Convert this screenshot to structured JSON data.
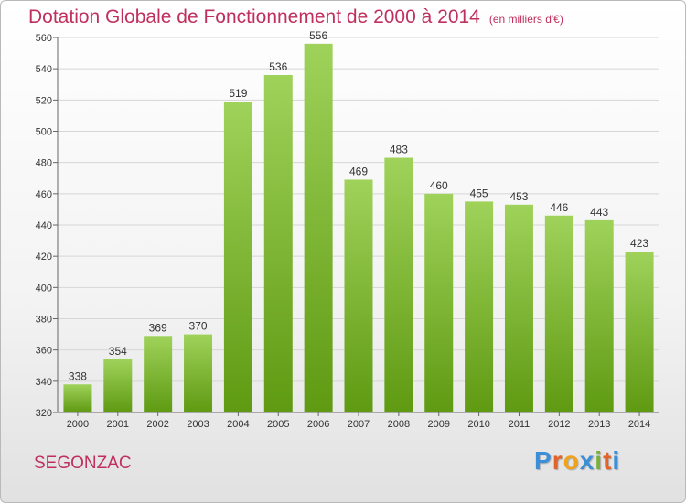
{
  "header": {
    "title": "Dotation Globale de Fonctionnement de 2000 à 2014",
    "unit": "(en milliers d'€)"
  },
  "commune": "SEGONZAC",
  "logo": {
    "letters": [
      "P",
      "r",
      "o",
      "x",
      "i",
      "t",
      "i"
    ],
    "colors": [
      "#3a8fd8",
      "#e2632a",
      "#f0a21c",
      "#3a8fd8",
      "#7ab03a",
      "#e2632a",
      "#3a8fd8"
    ]
  },
  "colors": {
    "bar_light": "#9fd25a",
    "bar_dark": "#5f9a12",
    "title": "#c0305e",
    "grid": "#d6d6d6",
    "axis": "#666666"
  },
  "chart_data": {
    "type": "bar",
    "categories": [
      "2000",
      "2001",
      "2002",
      "2003",
      "2004",
      "2005",
      "2006",
      "2007",
      "2008",
      "2009",
      "2010",
      "2011",
      "2012",
      "2013",
      "2014"
    ],
    "values": [
      338,
      354,
      369,
      370,
      519,
      536,
      556,
      469,
      483,
      460,
      455,
      453,
      446,
      443,
      423
    ],
    "data_labels": [
      "338",
      "354",
      "369",
      "370",
      "519",
      "536",
      "556",
      "469",
      "483",
      "460",
      "455",
      "453",
      "446",
      "443",
      "423"
    ],
    "y_ticks": [
      "320",
      "340",
      "360",
      "380",
      "400",
      "420",
      "440",
      "460",
      "480",
      "500",
      "520",
      "540",
      "560"
    ],
    "ylim": [
      320,
      560
    ],
    "grid": true
  }
}
